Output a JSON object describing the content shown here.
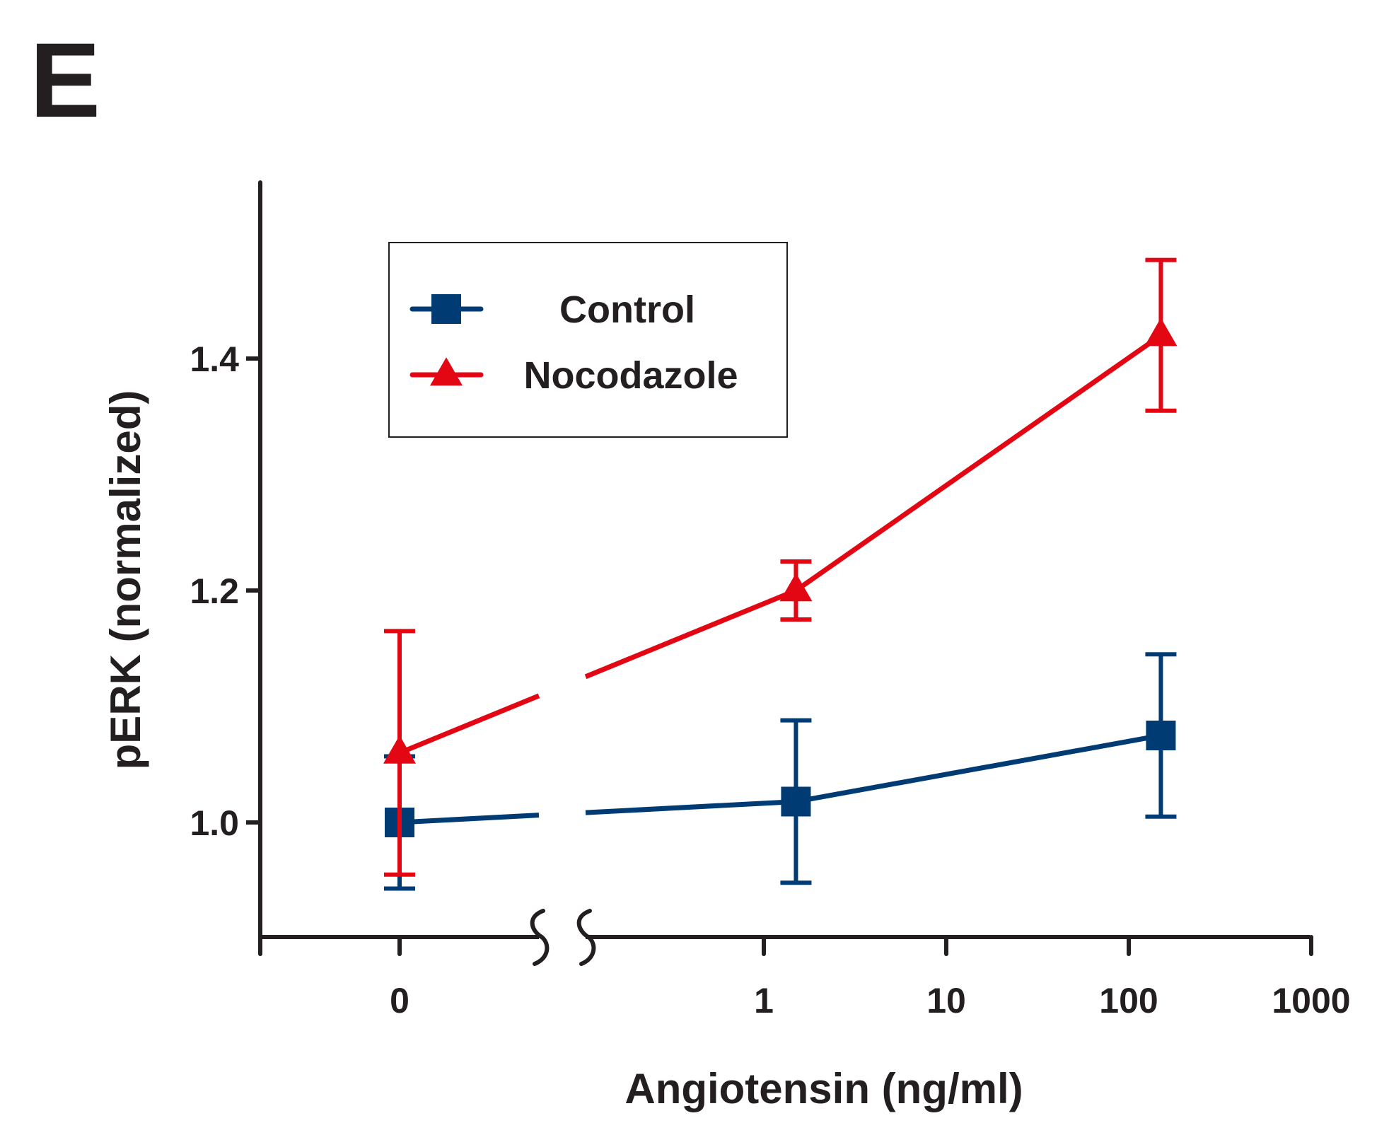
{
  "panel_label": "E",
  "colors": {
    "axis": "#231f20",
    "control": "#003b73",
    "nocodazole": "#e30613"
  },
  "chart_data": {
    "type": "line",
    "title": "",
    "xlabel": "Angiotensin (ng/ml)",
    "ylabel": "pERK (normalized)",
    "x_scale": "log with axis break (0 plotted separately)",
    "x_ticks": [
      "0",
      "1",
      "10",
      "100",
      "1000"
    ],
    "y_ticks": [
      "1.0",
      "1.2",
      "1.4"
    ],
    "ylim": [
      0.9,
      1.52
    ],
    "legend_position": "top-left",
    "series": [
      {
        "name": "Control",
        "marker": "square",
        "color": "#003b73",
        "x": [
          0,
          1.5,
          150
        ],
        "y": [
          1.0,
          1.018,
          1.075
        ],
        "error": [
          0.057,
          0.07,
          0.07
        ]
      },
      {
        "name": "Nocodazole",
        "marker": "triangle",
        "color": "#e30613",
        "x": [
          0,
          1.5,
          150
        ],
        "y": [
          1.06,
          1.2,
          1.42
        ],
        "error": [
          0.105,
          0.025,
          0.065
        ]
      }
    ]
  }
}
